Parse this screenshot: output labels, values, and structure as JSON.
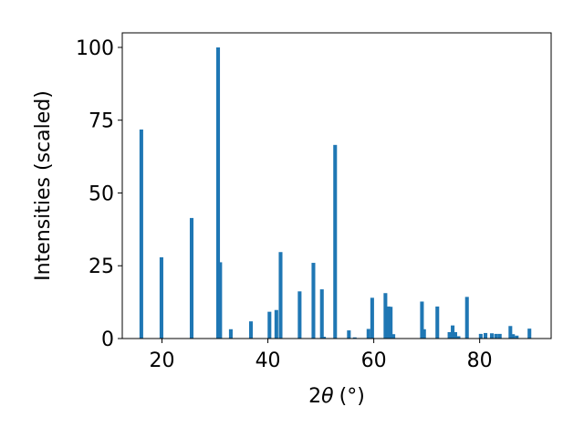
{
  "chart_data": {
    "type": "bar",
    "xlabel": "2θ (°)",
    "xlabel_parts": {
      "theta_symbol": "θ",
      "prefix": "2",
      "unit": "(°)"
    },
    "ylabel": "Intensities (scaled)",
    "xlim": [
      12.5,
      93.5
    ],
    "ylim": [
      0,
      105
    ],
    "xticks": [
      20,
      40,
      60,
      80
    ],
    "xtick_labels": [
      "20",
      "40",
      "60",
      "80"
    ],
    "yticks": [
      0,
      25,
      50,
      75,
      100
    ],
    "ytick_labels": [
      "0",
      "25",
      "50",
      "75",
      "100"
    ],
    "grid": false,
    "bar_color": "#1f77b4",
    "bar_width": 0.7,
    "bars": [
      {
        "x": 16.1,
        "y": 71.8
      },
      {
        "x": 19.9,
        "y": 27.9
      },
      {
        "x": 25.6,
        "y": 41.4
      },
      {
        "x": 30.6,
        "y": 100.0
      },
      {
        "x": 31.0,
        "y": 26.2
      },
      {
        "x": 33.0,
        "y": 3.2
      },
      {
        "x": 36.8,
        "y": 5.9
      },
      {
        "x": 40.3,
        "y": 9.2
      },
      {
        "x": 41.6,
        "y": 9.8
      },
      {
        "x": 42.4,
        "y": 29.7
      },
      {
        "x": 46.0,
        "y": 16.2
      },
      {
        "x": 48.6,
        "y": 26.0
      },
      {
        "x": 50.2,
        "y": 16.9
      },
      {
        "x": 50.6,
        "y": 0.6
      },
      {
        "x": 52.7,
        "y": 66.5
      },
      {
        "x": 55.3,
        "y": 2.8
      },
      {
        "x": 56.4,
        "y": 0.4
      },
      {
        "x": 59.0,
        "y": 3.3
      },
      {
        "x": 59.7,
        "y": 14.0
      },
      {
        "x": 62.2,
        "y": 15.6
      },
      {
        "x": 62.8,
        "y": 11.0
      },
      {
        "x": 63.2,
        "y": 10.9
      },
      {
        "x": 63.7,
        "y": 1.5
      },
      {
        "x": 69.1,
        "y": 12.7
      },
      {
        "x": 69.5,
        "y": 3.2
      },
      {
        "x": 72.0,
        "y": 11.0
      },
      {
        "x": 74.3,
        "y": 2.2
      },
      {
        "x": 74.9,
        "y": 4.5
      },
      {
        "x": 75.4,
        "y": 2.2
      },
      {
        "x": 76.0,
        "y": 0.8
      },
      {
        "x": 77.6,
        "y": 14.3
      },
      {
        "x": 80.2,
        "y": 1.6
      },
      {
        "x": 81.1,
        "y": 1.9
      },
      {
        "x": 82.3,
        "y": 1.8
      },
      {
        "x": 83.1,
        "y": 1.6
      },
      {
        "x": 83.8,
        "y": 1.6
      },
      {
        "x": 85.8,
        "y": 4.3
      },
      {
        "x": 86.3,
        "y": 1.5
      },
      {
        "x": 87.0,
        "y": 1.0
      },
      {
        "x": 89.4,
        "y": 3.4
      }
    ]
  }
}
